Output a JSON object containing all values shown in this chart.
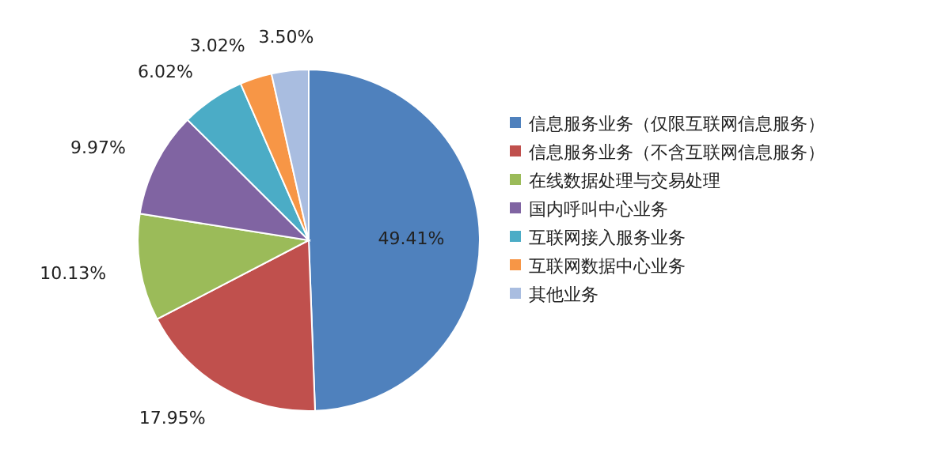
{
  "chart_data": {
    "type": "pie",
    "categories": [
      "信息服务业务（仅限互联网信息服务）",
      "信息服务业务（不含互联网信息服务）",
      "在线数据处理与交易处理",
      "国内呼叫中心业务",
      "互联网接入服务业务",
      "互联网数据中心业务",
      "其他业务"
    ],
    "values": [
      49.41,
      17.95,
      10.13,
      9.97,
      6.02,
      3.02,
      3.5
    ],
    "colors": [
      "#4f81bd",
      "#c0504d",
      "#9bbb59",
      "#8064a2",
      "#4bacc6",
      "#f79646",
      "#a9bde0"
    ],
    "value_labels": [
      "49.41%",
      "17.95%",
      "10.13%",
      "9.97%",
      "6.02%",
      "3.02%",
      "3.50%"
    ],
    "legend": "right"
  }
}
